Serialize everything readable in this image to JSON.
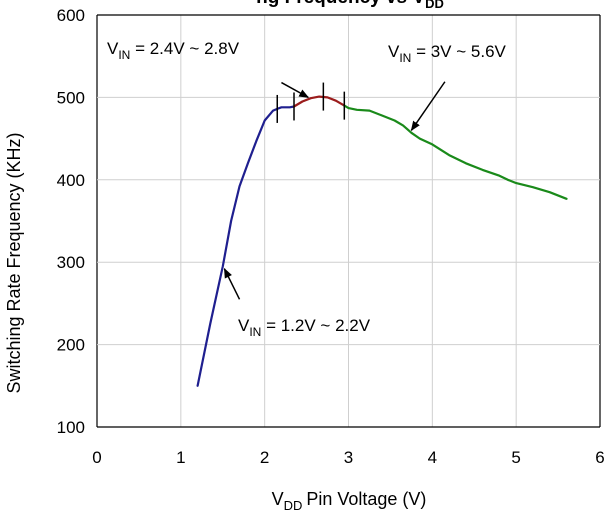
{
  "chart_data": {
    "type": "line",
    "title": "Switching Rate Frequency vs VDD",
    "title_visible_text": "ng Frequency vs V",
    "title_subscript_visible": "DD",
    "xlabel": "Pin Voltage (V)",
    "xlabel_prefix": "V",
    "xlabel_subscript": "DD",
    "ylabel": "Switching Rate Frequency (KHz)",
    "xlim": [
      0,
      6
    ],
    "ylim": [
      100,
      600
    ],
    "x_ticks": [
      0,
      1,
      2,
      3,
      4,
      5,
      6
    ],
    "y_ticks": [
      100,
      200,
      300,
      400,
      500,
      600
    ],
    "grid": true,
    "series": [
      {
        "color": "#1f1f8f",
        "x": [
          1.2,
          1.35,
          1.5,
          1.6,
          1.7,
          1.8,
          1.9,
          2.0,
          2.1,
          2.15,
          2.2,
          2.25,
          2.3,
          2.35
        ],
        "y": [
          150,
          225,
          295,
          350,
          392,
          420,
          447,
          472,
          484,
          486,
          488,
          488,
          488,
          489
        ]
      },
      {
        "color": "#9b1c1c",
        "x": [
          2.35,
          2.45,
          2.55,
          2.65,
          2.75,
          2.85,
          2.95
        ],
        "y": [
          489,
          495,
          499,
          501,
          500,
          496,
          490
        ]
      },
      {
        "color": "#1a8a1a",
        "x": [
          2.95,
          3.0,
          3.1,
          3.25,
          3.4,
          3.55,
          3.65,
          3.75,
          3.85,
          4.0,
          4.2,
          4.4,
          4.6,
          4.8,
          4.9,
          5.0,
          5.2,
          5.4,
          5.6
        ],
        "y": [
          490,
          487,
          485,
          484,
          478,
          472,
          466,
          457,
          450,
          443,
          430,
          420,
          412,
          405,
          400,
          396,
          391,
          385,
          377
        ]
      }
    ],
    "dividers": [
      {
        "x": 2.15,
        "y": 486
      },
      {
        "x": 2.35,
        "y": 489
      },
      {
        "x": 2.7,
        "y": 501
      },
      {
        "x": 2.95,
        "y": 490
      }
    ],
    "annotations": [
      {
        "prefix": "V",
        "sub": "IN",
        "text": " = 2.4V ~ 2.8V",
        "arrow_from": [
          2.2,
          518
        ],
        "arrow_to": [
          2.52,
          500
        ]
      },
      {
        "prefix": "V",
        "sub": "IN",
        "text": " = 3V ~ 5.6V",
        "arrow_from": [
          4.15,
          519
        ],
        "arrow_to": [
          3.75,
          460
        ]
      },
      {
        "prefix": "V",
        "sub": "IN",
        "text": " = 1.2V ~ 2.2V",
        "arrow_from": [
          1.7,
          255
        ],
        "arrow_to": [
          1.52,
          292
        ]
      }
    ]
  }
}
